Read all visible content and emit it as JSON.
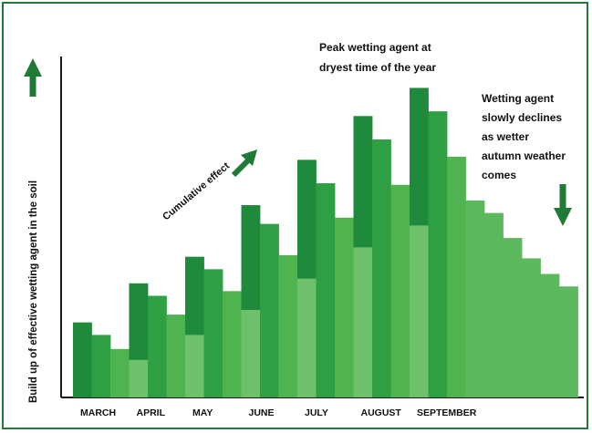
{
  "chart_data": {
    "type": "bar",
    "title": "",
    "xlabel": "",
    "ylabel": "Build up of effective wetting agent in the soil",
    "grid": false,
    "legend": "none",
    "categories": [
      "MARCH",
      "APRIL",
      "MAY",
      "JUNE",
      "JULY",
      "AUGUST",
      "SEPTEMBER"
    ],
    "ylim": [
      0,
      100
    ],
    "bars": [
      {
        "month": "MARCH",
        "value": 24.0,
        "shade": "dark"
      },
      {
        "month": "MARCH",
        "value": 20.0,
        "shade": "mid"
      },
      {
        "month": "MARCH",
        "value": 15.5,
        "shade": "light"
      },
      {
        "month": "APRIL",
        "value": 36.5,
        "base": 12.0,
        "shade": "dark"
      },
      {
        "month": "APRIL",
        "value": 32.5,
        "shade": "mid"
      },
      {
        "month": "APRIL",
        "value": 26.5,
        "shade": "light"
      },
      {
        "month": "MAY",
        "value": 45.0,
        "base": 20.0,
        "shade": "dark"
      },
      {
        "month": "MAY",
        "value": 41.0,
        "shade": "mid"
      },
      {
        "month": "MAY",
        "value": 34.0,
        "shade": "light"
      },
      {
        "month": "JUNE",
        "value": 61.5,
        "base": 28.0,
        "shade": "dark"
      },
      {
        "month": "JUNE",
        "value": 55.5,
        "shade": "mid"
      },
      {
        "month": "JUNE",
        "value": 45.5,
        "shade": "light"
      },
      {
        "month": "JULY",
        "value": 76.0,
        "base": 38.0,
        "shade": "dark"
      },
      {
        "month": "JULY",
        "value": 68.5,
        "shade": "mid"
      },
      {
        "month": "JULY",
        "value": 57.5,
        "shade": "light"
      },
      {
        "month": "AUGUST",
        "value": 90.0,
        "base": 48.0,
        "shade": "dark"
      },
      {
        "month": "AUGUST",
        "value": 82.5,
        "shade": "mid"
      },
      {
        "month": "AUGUST",
        "value": 68.0,
        "shade": "light"
      },
      {
        "month": "SEPTEMBER",
        "value": 99.0,
        "base": 55.0,
        "shade": "dark"
      },
      {
        "month": "SEPTEMBER",
        "value": 91.5,
        "shade": "mid"
      },
      {
        "month": "SEPTEMBER",
        "value": 77.0,
        "shade": "light"
      },
      {
        "month": "",
        "value": 63.0,
        "shade": "fade"
      },
      {
        "month": "",
        "value": 59.0,
        "shade": "fade"
      },
      {
        "month": "",
        "value": 51.0,
        "shade": "fade"
      },
      {
        "month": "",
        "value": 44.5,
        "shade": "fade"
      },
      {
        "month": "",
        "value": 39.5,
        "shade": "fade"
      },
      {
        "month": "",
        "value": 35.5,
        "shade": "fade"
      }
    ],
    "annotations": {
      "peak_line1": "Peak wetting agent at",
      "peak_line2": "dryest time of the year",
      "cumulative": "Cumulative effect",
      "decline_line1": "Wetting agent",
      "decline_line2": "slowly declines",
      "decline_line3": "as wetter",
      "decline_line4": "autumn weather",
      "decline_line5": "comes"
    }
  },
  "colors": {
    "dark": "#1f8a3c",
    "mid": "#2ea043",
    "light": "#4fb34f",
    "fade": "#5cb85c",
    "base": "#6fc06b",
    "frame": "#1f7a3a",
    "axis": "#1a1a1a",
    "arrow": "#1e7a35"
  }
}
